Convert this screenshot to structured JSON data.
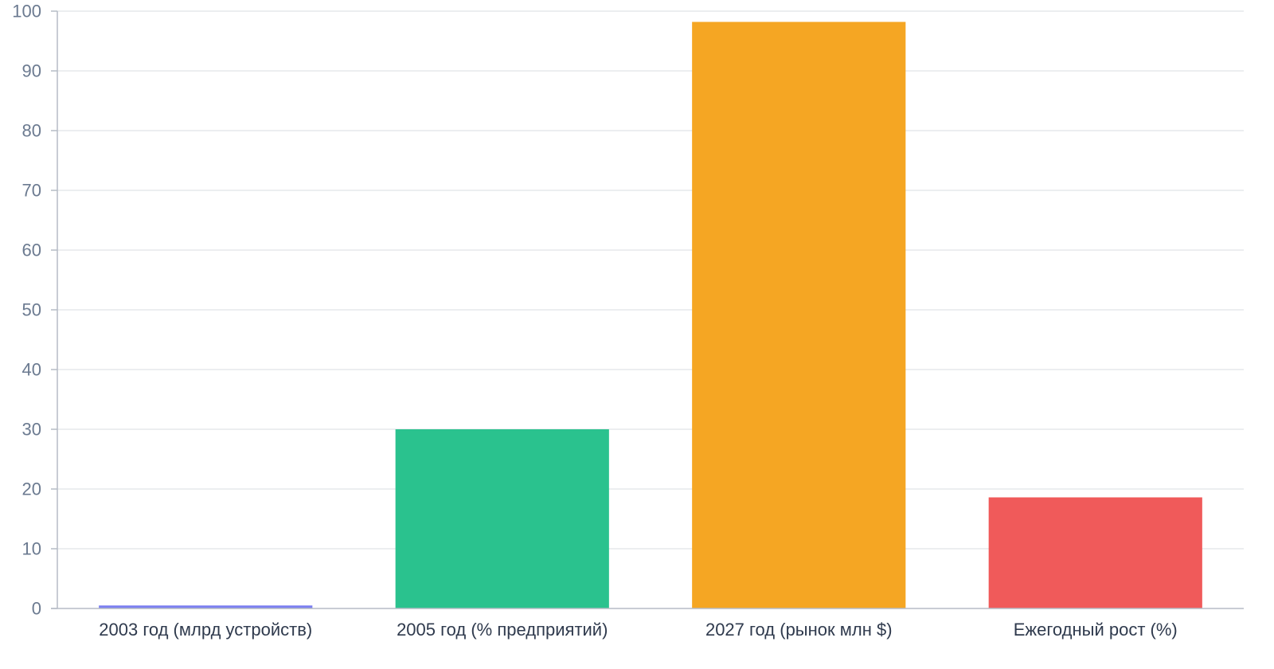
{
  "chart_data": {
    "type": "bar",
    "title": "",
    "xlabel": "",
    "ylabel": "",
    "categories": [
      "2003 год (млрд устройств)",
      "2005 год (% предприятий)",
      "2027 год (рынок млн $)",
      "Ежегодный рост (%)"
    ],
    "values": [
      0.5,
      30,
      98.2,
      18.6
    ],
    "colors": [
      "#7b7ff0",
      "#2ac28e",
      "#f5a623",
      "#f05a5a"
    ],
    "ylim": [
      0,
      100
    ],
    "yticks": [
      0,
      10,
      20,
      30,
      40,
      50,
      60,
      70,
      80,
      90,
      100
    ],
    "grid": true,
    "legend": "none"
  }
}
